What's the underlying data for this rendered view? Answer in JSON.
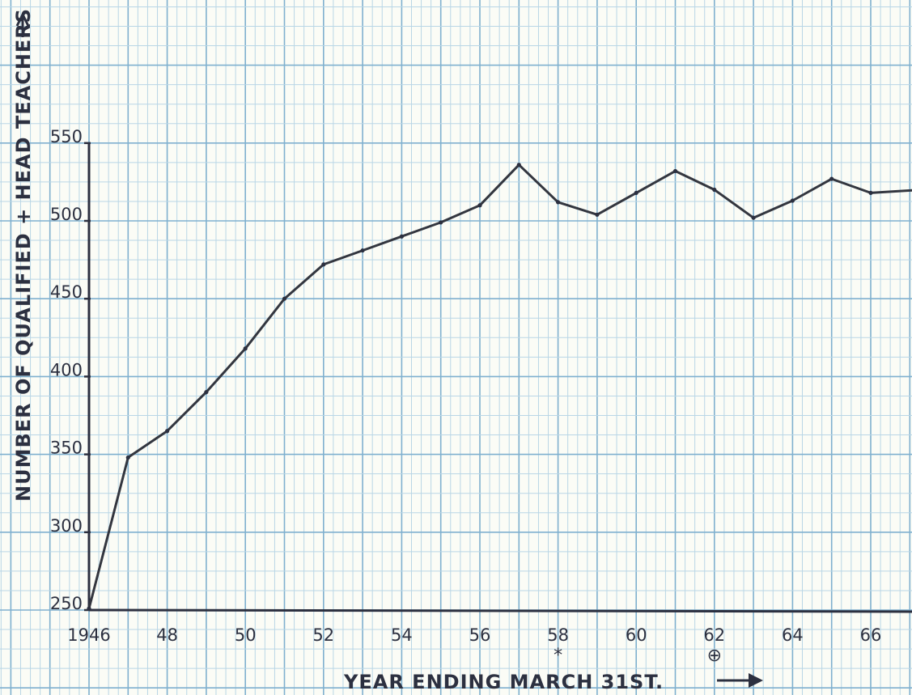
{
  "chart_data": {
    "type": "line",
    "title": "",
    "xlabel": "YEAR ENDING MARCH 31ST.",
    "ylabel": "NUMBER OF QUALIFIED + HEAD TEACHERS",
    "xlim": [
      1946,
      1967.3
    ],
    "ylim": [
      250,
      550
    ],
    "grid": true,
    "x_tick_labels": [
      "1946",
      "48",
      "50",
      "52",
      "54",
      "56",
      "58",
      "60",
      "62",
      "64",
      "66"
    ],
    "y_tick_labels": [
      "250",
      "300",
      "350",
      "400",
      "450",
      "500",
      "550"
    ],
    "annotations": [
      {
        "text": "*",
        "x": 1958
      },
      {
        "text": "⊕",
        "x": 1962
      }
    ],
    "series": [
      {
        "x": [
          1946,
          1947,
          1948,
          1949,
          1950,
          1951,
          1952,
          1953,
          1954,
          1955,
          1956,
          1957,
          1958,
          1959,
          1960,
          1961,
          1962,
          1963,
          1964,
          1965,
          1966,
          1967.3
        ],
        "values": [
          251,
          348,
          365,
          390,
          418,
          450,
          472,
          481,
          490,
          499,
          510,
          536,
          512,
          504,
          518,
          532,
          520,
          502,
          513,
          527,
          518,
          520
        ]
      }
    ]
  }
}
